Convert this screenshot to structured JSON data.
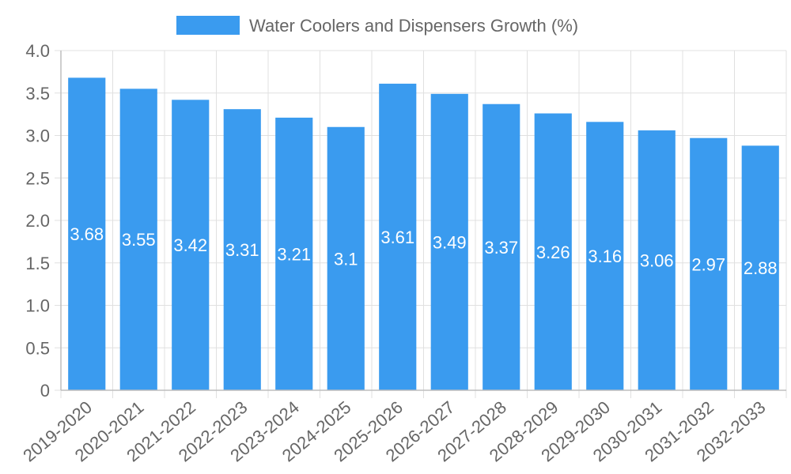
{
  "chart_data": {
    "type": "bar",
    "categories": [
      "2019-2020",
      "2020-2021",
      "2021-2022",
      "2022-2023",
      "2023-2024",
      "2024-2025",
      "2025-2026",
      "2026-2027",
      "2027-2028",
      "2028-2029",
      "2029-2030",
      "2030-2031",
      "2031-2032",
      "2032-2033"
    ],
    "series": [
      {
        "name": "Water Coolers and Dispensers Growth (%)",
        "values": [
          3.68,
          3.55,
          3.42,
          3.31,
          3.21,
          3.1,
          3.61,
          3.49,
          3.37,
          3.26,
          3.16,
          3.06,
          2.97,
          2.88
        ]
      }
    ],
    "ylim": [
      0,
      4.0
    ],
    "yticks": [
      "0",
      "0.5",
      "1.0",
      "1.5",
      "2.0",
      "2.5",
      "3.0",
      "3.5",
      "4.0"
    ],
    "grid": true,
    "legend": "top-center",
    "colors": {
      "bar": "#3a9bef",
      "label": "#ffffff",
      "text": "#666666",
      "grid": "#e0e0e0"
    }
  }
}
